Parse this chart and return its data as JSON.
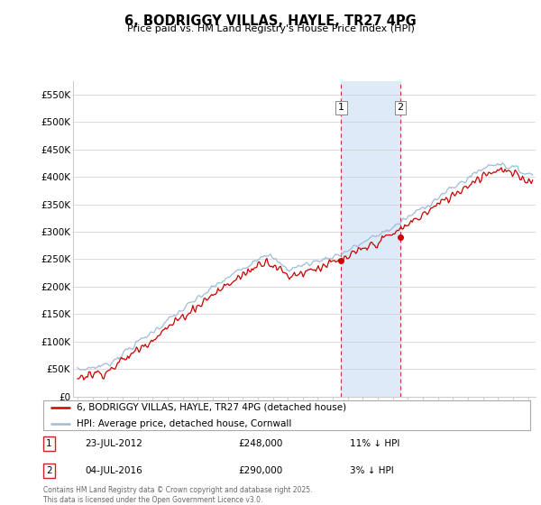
{
  "title": "6, BODRIGGY VILLAS, HAYLE, TR27 4PG",
  "subtitle": "Price paid vs. HM Land Registry's House Price Index (HPI)",
  "ylabel_ticks": [
    "£0",
    "£50K",
    "£100K",
    "£150K",
    "£200K",
    "£250K",
    "£300K",
    "£350K",
    "£400K",
    "£450K",
    "£500K",
    "£550K"
  ],
  "ytick_vals": [
    0,
    50000,
    100000,
    150000,
    200000,
    250000,
    300000,
    350000,
    400000,
    450000,
    500000,
    550000
  ],
  "ylim": [
    0,
    575000
  ],
  "xlim_start": 1994.7,
  "xlim_end": 2025.5,
  "transaction1_date": 2012.55,
  "transaction1_price": 248000,
  "transaction2_date": 2016.5,
  "transaction2_price": 290000,
  "shaded_region_start": 2012.55,
  "shaded_region_end": 2016.5,
  "legend_line1": "6, BODRIGGY VILLAS, HAYLE, TR27 4PG (detached house)",
  "legend_line2": "HPI: Average price, detached house, Cornwall",
  "annotation1_date": "23-JUL-2012",
  "annotation1_price": "£248,000",
  "annotation1_hpi": "11% ↓ HPI",
  "annotation2_date": "04-JUL-2016",
  "annotation2_price": "£290,000",
  "annotation2_hpi": "3% ↓ HPI",
  "footer": "Contains HM Land Registry data © Crown copyright and database right 2025.\nThis data is licensed under the Open Government Licence v3.0.",
  "line_color_red": "#cc0000",
  "line_color_blue": "#a0bcd8",
  "background_color": "#ffffff",
  "grid_color": "#cccccc",
  "shaded_color": "#ddeaf7"
}
